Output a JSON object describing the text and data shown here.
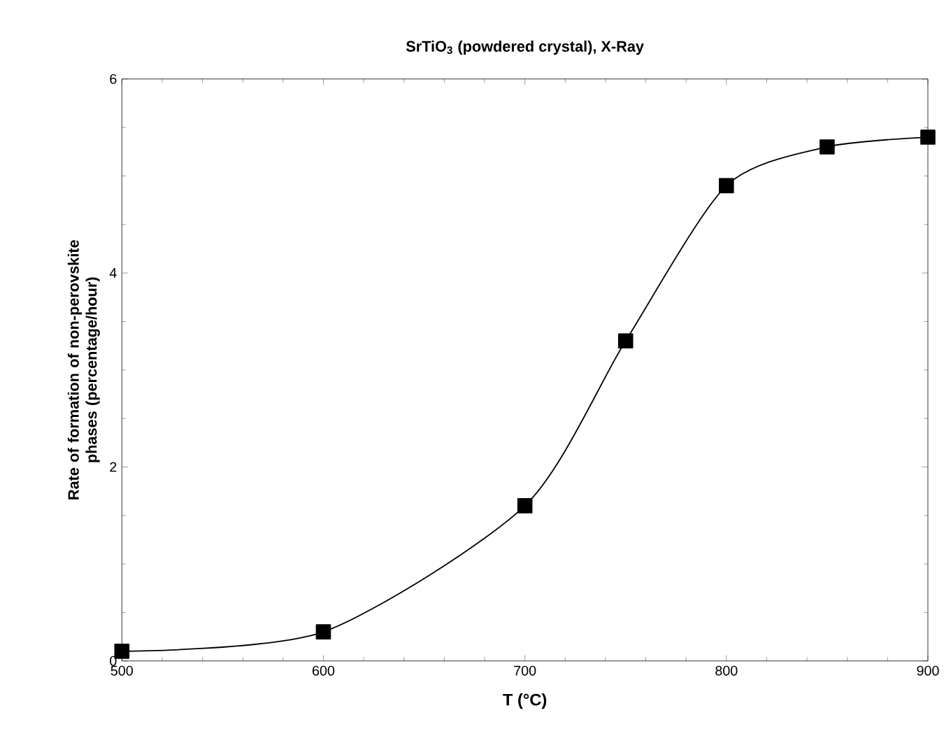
{
  "chart_data": {
    "type": "line",
    "title": "SrTiO$_{3}$ (powdered crystal), X-Ray",
    "xlabel": "T (°C)",
    "ylabel": "Rate of formation of non-perovskite phases (percentage/hour)",
    "x": [
      500,
      600,
      700,
      750,
      800,
      850,
      900
    ],
    "series": [
      {
        "color": "#000000",
        "values": [
          0.1,
          0.3,
          1.6,
          3.3,
          4.9,
          5.3,
          5.4
        ]
      }
    ],
    "xlim": [
      500,
      900
    ],
    "xticks": [
      500,
      600,
      700,
      800,
      900
    ],
    "ylim": [
      0,
      6
    ],
    "yticks": [
      0,
      2,
      4,
      6
    ],
    "marker": "square",
    "line_style": "solid"
  }
}
